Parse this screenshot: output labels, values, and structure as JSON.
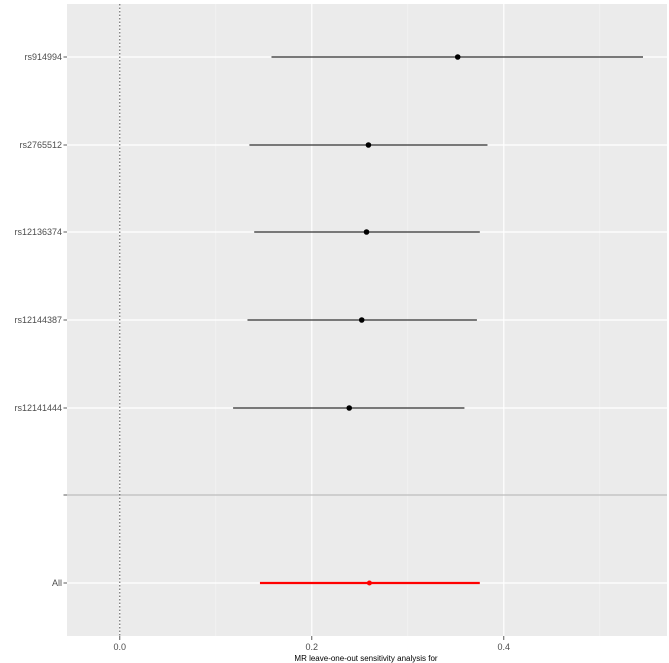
{
  "chart_data": {
    "type": "scatter",
    "subtype": "forest",
    "title": "",
    "xlabel": "MR leave-one-out sensitivity analysis for",
    "ylabel": "",
    "xlim": [
      -0.055,
      0.57
    ],
    "x_ticks": [
      {
        "value": 0.0,
        "label": "0.0"
      },
      {
        "value": 0.2,
        "label": "0.2"
      },
      {
        "value": 0.4,
        "label": "0.4"
      }
    ],
    "reference_line": 0.0,
    "grid": true,
    "rows": [
      {
        "label": "rs914994",
        "estimate": 0.352,
        "lower": 0.158,
        "upper": 0.545,
        "color": "#000000"
      },
      {
        "label": "rs2765512",
        "estimate": 0.259,
        "lower": 0.135,
        "upper": 0.383,
        "color": "#000000"
      },
      {
        "label": "rs12136374",
        "estimate": 0.257,
        "lower": 0.14,
        "upper": 0.375,
        "color": "#000000"
      },
      {
        "label": "rs12144387",
        "estimate": 0.252,
        "lower": 0.133,
        "upper": 0.372,
        "color": "#000000"
      },
      {
        "label": "rs12141444",
        "estimate": 0.239,
        "lower": 0.118,
        "upper": 0.359,
        "color": "#000000"
      },
      {
        "label": "",
        "separator": true
      },
      {
        "label": "All",
        "estimate": 0.26,
        "lower": 0.146,
        "upper": 0.375,
        "color": "#ff0000"
      }
    ],
    "colors": {
      "panel": "#ebebeb",
      "grid_major": "#ffffff",
      "grid_minor": "#f4f4f4",
      "separator": "#bdbdbd",
      "reference": "#555555"
    }
  }
}
